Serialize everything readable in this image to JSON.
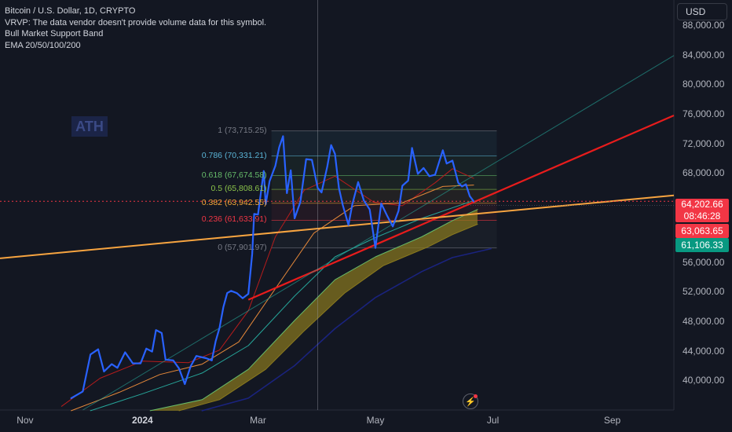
{
  "legend": {
    "line1": "Bitcoin / U.S. Dollar, 1D, CRYPTO",
    "line2": "VRVP: The data vendor doesn't provide volume data for this symbol.",
    "line3": "Bull Market Support Band",
    "line4": "EMA 20/50/100/200"
  },
  "currency": "USD",
  "ath_label": "ATH",
  "price_tags": {
    "last": "64,202.66",
    "countdown": "08:46:28",
    "red_level": "63,063.65",
    "green_level": "61,106.33"
  },
  "fib_levels": [
    {
      "label": "1 (73,715.25)",
      "price": 73715.25,
      "color": "#787b86"
    },
    {
      "label": "0.786 (70,331.21)",
      "price": 70331.21,
      "color": "#5ab4d6"
    },
    {
      "label": "0.618 (67,674.58)",
      "price": 67674.58,
      "color": "#66bb6a"
    },
    {
      "label": "0.5 (65,808.61)",
      "price": 65808.61,
      "color": "#8bc34a"
    },
    {
      "label": "0.382 (63,942.55)",
      "price": 63942.55,
      "color": "#f4a637"
    },
    {
      "label": "0.236 (61,633.91)",
      "price": 61633.91,
      "color": "#f23645"
    },
    {
      "label": "0 (57,901.97)",
      "price": 57901.97,
      "color": "#787b86"
    }
  ],
  "colors": {
    "background": "#131722",
    "price_line": "#2962ff",
    "trend_red": "#e81c1c",
    "trend_orange": "#f7a440",
    "ema20": "#b71c1c",
    "ema50": "#e6893a",
    "ema100": "#26a69a",
    "ema200": "#1a237e",
    "support_band_fill": "#8b7a1e",
    "support_band_line": "#66bb6a"
  },
  "chart_data": {
    "type": "line",
    "title": "Bitcoin / U.S. Dollar, 1D, CRYPTO",
    "xlabel": "",
    "ylabel": "",
    "x_ticks": [
      {
        "label": "Nov",
        "date": "2023-11-01",
        "bold": false
      },
      {
        "label": "2024",
        "date": "2024-01-01",
        "bold": true
      },
      {
        "label": "Mar",
        "date": "2024-03-01",
        "bold": false
      },
      {
        "label": "May",
        "date": "2024-05-01",
        "bold": false
      },
      {
        "label": "Jul",
        "date": "2024-07-01",
        "bold": false
      },
      {
        "label": "Sep",
        "date": "2024-09-01",
        "bold": false
      }
    ],
    "y_ticks": [
      {
        "label": "88,000.00",
        "value": 88000
      },
      {
        "label": "84,000.00",
        "value": 84000
      },
      {
        "label": "80,000.00",
        "value": 80000
      },
      {
        "label": "76,000.00",
        "value": 76000
      },
      {
        "label": "72,000.00",
        "value": 72000
      },
      {
        "label": "68,000.00",
        "value": 68000
      },
      {
        "label": "56,000.00",
        "value": 56000
      },
      {
        "label": "52,000.00",
        "value": 52000
      },
      {
        "label": "48,000.00",
        "value": 48000
      },
      {
        "label": "44,000.00",
        "value": 44000
      },
      {
        "label": "40,000.00",
        "value": 40000
      }
    ],
    "ylim": [
      36000,
      91400
    ],
    "xlim": [
      "2023-10-19",
      "2024-10-03"
    ],
    "grid": false,
    "crosshair_date": "2024-04-01",
    "current_price": 64202.66,
    "series": [
      {
        "name": "Bitcoin / U.S. Dollar",
        "color": "#2962ff",
        "width": 2.2,
        "points": [
          [
            "2023-11-25",
            37600
          ],
          [
            "2023-12-01",
            38500
          ],
          [
            "2023-12-05",
            43500
          ],
          [
            "2023-12-09",
            44200
          ],
          [
            "2023-12-12",
            41200
          ],
          [
            "2023-12-16",
            42200
          ],
          [
            "2023-12-19",
            41700
          ],
          [
            "2023-12-23",
            43800
          ],
          [
            "2023-12-27",
            42300
          ],
          [
            "2023-12-31",
            42300
          ],
          [
            "2024-01-03",
            44300
          ],
          [
            "2024-01-06",
            43900
          ],
          [
            "2024-01-08",
            46800
          ],
          [
            "2024-01-11",
            46400
          ],
          [
            "2024-01-13",
            42800
          ],
          [
            "2024-01-17",
            42700
          ],
          [
            "2024-01-20",
            41600
          ],
          [
            "2024-01-23",
            39500
          ],
          [
            "2024-01-26",
            41900
          ],
          [
            "2024-01-29",
            43300
          ],
          [
            "2024-02-03",
            43000
          ],
          [
            "2024-02-06",
            42700
          ],
          [
            "2024-02-08",
            45300
          ],
          [
            "2024-02-10",
            47100
          ],
          [
            "2024-02-12",
            49900
          ],
          [
            "2024-02-14",
            51800
          ],
          [
            "2024-02-16",
            52100
          ],
          [
            "2024-02-19",
            51800
          ],
          [
            "2024-02-22",
            51100
          ],
          [
            "2024-02-25",
            51700
          ],
          [
            "2024-02-27",
            57100
          ],
          [
            "2024-02-28",
            62500
          ],
          [
            "2024-03-01",
            62400
          ],
          [
            "2024-03-04",
            68300
          ],
          [
            "2024-03-05",
            63800
          ],
          [
            "2024-03-07",
            66900
          ],
          [
            "2024-03-10",
            69000
          ],
          [
            "2024-03-12",
            71500
          ],
          [
            "2024-03-14",
            73000
          ],
          [
            "2024-03-16",
            65300
          ],
          [
            "2024-03-18",
            68400
          ],
          [
            "2024-03-20",
            61900
          ],
          [
            "2024-03-23",
            64100
          ],
          [
            "2024-03-26",
            69900
          ],
          [
            "2024-03-29",
            69800
          ],
          [
            "2024-04-01",
            66000
          ],
          [
            "2024-04-03",
            65400
          ],
          [
            "2024-04-06",
            68900
          ],
          [
            "2024-04-08",
            71800
          ],
          [
            "2024-04-10",
            70600
          ],
          [
            "2024-04-12",
            66000
          ],
          [
            "2024-04-14",
            63700
          ],
          [
            "2024-04-17",
            61000
          ],
          [
            "2024-04-19",
            63800
          ],
          [
            "2024-04-22",
            66800
          ],
          [
            "2024-04-25",
            64300
          ],
          [
            "2024-04-28",
            63100
          ],
          [
            "2024-05-01",
            57900
          ],
          [
            "2024-05-04",
            63900
          ],
          [
            "2024-05-07",
            62300
          ],
          [
            "2024-05-10",
            60800
          ],
          [
            "2024-05-13",
            62900
          ],
          [
            "2024-05-15",
            66300
          ],
          [
            "2024-05-18",
            67000
          ],
          [
            "2024-05-20",
            71400
          ],
          [
            "2024-05-23",
            67900
          ],
          [
            "2024-05-26",
            68700
          ],
          [
            "2024-05-29",
            67600
          ],
          [
            "2024-06-01",
            67800
          ],
          [
            "2024-06-05",
            71100
          ],
          [
            "2024-06-07",
            69300
          ],
          [
            "2024-06-10",
            69700
          ],
          [
            "2024-06-13",
            66700
          ],
          [
            "2024-06-15",
            66200
          ],
          [
            "2024-06-17",
            66500
          ],
          [
            "2024-06-19",
            64900
          ],
          [
            "2024-06-21",
            64200
          ]
        ]
      },
      {
        "name": "EMA 20",
        "color": "#b71c1c",
        "width": 1,
        "points": [
          [
            "2023-11-20",
            36500
          ],
          [
            "2023-12-10",
            40300
          ],
          [
            "2024-01-01",
            42600
          ],
          [
            "2024-01-25",
            42400
          ],
          [
            "2024-02-10",
            44100
          ],
          [
            "2024-02-25",
            49400
          ],
          [
            "2024-03-10",
            59400
          ],
          [
            "2024-03-25",
            65700
          ],
          [
            "2024-04-10",
            67600
          ],
          [
            "2024-04-30",
            64100
          ],
          [
            "2024-05-15",
            63600
          ],
          [
            "2024-06-01",
            66700
          ],
          [
            "2024-06-10",
            68600
          ],
          [
            "2024-06-21",
            67300
          ]
        ]
      },
      {
        "name": "EMA 50",
        "color": "#e6893a",
        "width": 1,
        "points": [
          [
            "2023-11-25",
            35900
          ],
          [
            "2023-12-20",
            38400
          ],
          [
            "2024-01-10",
            40800
          ],
          [
            "2024-02-01",
            42200
          ],
          [
            "2024-02-20",
            45200
          ],
          [
            "2024-03-10",
            52400
          ],
          [
            "2024-03-30",
            59900
          ],
          [
            "2024-04-20",
            63600
          ],
          [
            "2024-05-15",
            64000
          ],
          [
            "2024-06-05",
            66200
          ],
          [
            "2024-06-21",
            66400
          ]
        ]
      },
      {
        "name": "EMA 100",
        "color": "#26a69a",
        "width": 1,
        "points": [
          [
            "2023-12-05",
            35900
          ],
          [
            "2024-01-01",
            38200
          ],
          [
            "2024-02-01",
            41000
          ],
          [
            "2024-02-25",
            44700
          ],
          [
            "2024-03-20",
            51400
          ],
          [
            "2024-04-10",
            56700
          ],
          [
            "2024-05-01",
            59300
          ],
          [
            "2024-05-25",
            61900
          ],
          [
            "2024-06-21",
            64300
          ]
        ]
      },
      {
        "name": "EMA 200",
        "color": "#1a237e",
        "width": 1.6,
        "points": [
          [
            "2024-02-01",
            35900
          ],
          [
            "2024-02-25",
            37600
          ],
          [
            "2024-03-20",
            42000
          ],
          [
            "2024-04-10",
            47000
          ],
          [
            "2024-05-01",
            51200
          ],
          [
            "2024-05-25",
            54700
          ],
          [
            "2024-06-10",
            56600
          ],
          [
            "2024-06-30",
            57800
          ]
        ]
      },
      {
        "name": "Bull Market Support Band upper",
        "color": "#66bb6a",
        "width": 1,
        "points": [
          [
            "2024-01-05",
            35900
          ],
          [
            "2024-02-01",
            37400
          ],
          [
            "2024-02-25",
            41500
          ],
          [
            "2024-03-20",
            48100
          ],
          [
            "2024-04-10",
            53600
          ],
          [
            "2024-05-01",
            56700
          ],
          [
            "2024-05-25",
            59400
          ],
          [
            "2024-06-10",
            61600
          ],
          [
            "2024-06-23",
            63100
          ]
        ]
      },
      {
        "name": "Bull Market Support Band lower",
        "color": "#8b7a1e",
        "width": 1,
        "points": [
          [
            "2024-01-20",
            35900
          ],
          [
            "2024-02-10",
            37400
          ],
          [
            "2024-03-05",
            41500
          ],
          [
            "2024-03-25",
            46700
          ],
          [
            "2024-04-15",
            51800
          ],
          [
            "2024-05-05",
            55500
          ],
          [
            "2024-05-28",
            58000
          ],
          [
            "2024-06-10",
            59700
          ],
          [
            "2024-06-23",
            61100
          ]
        ]
      }
    ],
    "trend_lines": [
      {
        "color": "#e81c1c",
        "width": 2.2,
        "from": [
          "2024-02-25",
          50900
        ],
        "to": [
          "2024-10-03",
          75800
        ]
      },
      {
        "color": "#f7a440",
        "width": 2,
        "from": [
          "2023-10-19",
          56500
        ],
        "to": [
          "2024-10-03",
          65000
        ]
      },
      {
        "color": "#26a69a",
        "width": 1,
        "from": [
          "2023-12-01",
          36000
        ],
        "to": [
          "2024-10-03",
          83900
        ]
      }
    ],
    "fib_range": {
      "start": "2024-03-08",
      "end": "2024-07-03"
    }
  }
}
